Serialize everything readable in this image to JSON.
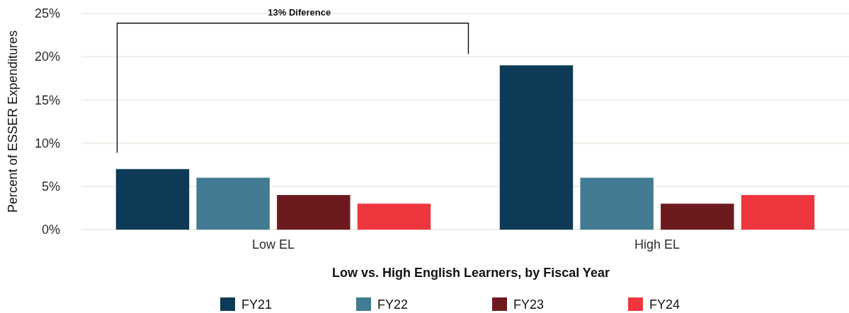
{
  "chart_data": {
    "type": "bar",
    "categories": [
      "Low EL",
      "High EL"
    ],
    "series": [
      {
        "name": "FY21",
        "color": "#0d3b57",
        "values": [
          7,
          19
        ]
      },
      {
        "name": "FY22",
        "color": "#427b93",
        "values": [
          6,
          6
        ]
      },
      {
        "name": "FY23",
        "color": "#6d1a1e",
        "values": [
          4,
          3
        ]
      },
      {
        "name": "FY24",
        "color": "#ef363f",
        "values": [
          3,
          4
        ]
      }
    ],
    "xlabel": "Low vs. High English Learners, by Fiscal Year",
    "ylabel": "Percent of ESSER Expenditures",
    "ylim": [
      0,
      25
    ],
    "yticks": [
      {
        "value": 0,
        "label": "0%"
      },
      {
        "value": 5,
        "label": "5%"
      },
      {
        "value": 10,
        "label": "10%"
      },
      {
        "value": 15,
        "label": "15%"
      },
      {
        "value": 20,
        "label": "20%"
      },
      {
        "value": 25,
        "label": "25%"
      }
    ],
    "annotations": [
      "13% Diference"
    ],
    "grid": "y",
    "legend": "bottom"
  }
}
